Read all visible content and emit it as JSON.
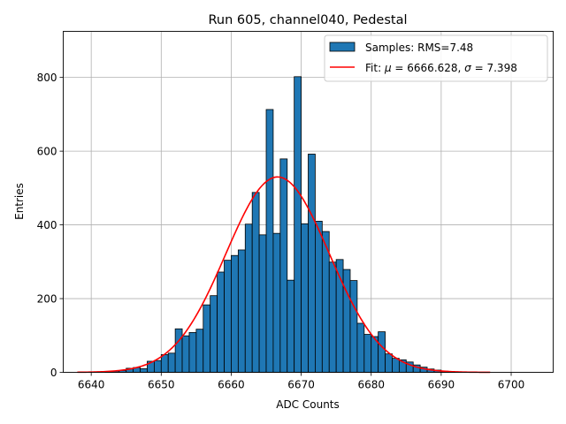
{
  "chart_data": {
    "type": "bar",
    "title": "Run 605, channel040, Pedestal",
    "xlabel": "ADC Counts",
    "ylabel": "Entries",
    "xlim": [
      6636,
      6706
    ],
    "ylim": [
      0,
      925
    ],
    "xticks": [
      6640,
      6650,
      6660,
      6670,
      6680,
      6690,
      6700
    ],
    "yticks": [
      0,
      200,
      400,
      600,
      800
    ],
    "grid": true,
    "legend_position": "top-right",
    "histogram": {
      "name": "Samples: RMS=7.48",
      "color": "#1f77b4",
      "bin_width": 1,
      "bin_starts": [
        6642,
        6643,
        6644,
        6645,
        6646,
        6647,
        6648,
        6649,
        6650,
        6651,
        6652,
        6653,
        6654,
        6655,
        6656,
        6657,
        6658,
        6659,
        6660,
        6661,
        6662,
        6663,
        6664,
        6665,
        6666,
        6667,
        6668,
        6669,
        6670,
        6671,
        6672,
        6673,
        6674,
        6675,
        6676,
        6677,
        6678,
        6679,
        6680,
        6681,
        6682,
        6683,
        6684,
        6685,
        6686,
        6687,
        6688,
        6689,
        6690,
        6691
      ],
      "counts": [
        1,
        3,
        5,
        11,
        13,
        10,
        30,
        32,
        48,
        52,
        118,
        99,
        108,
        117,
        183,
        208,
        272,
        304,
        317,
        332,
        402,
        488,
        373,
        713,
        377,
        579,
        250,
        802,
        403,
        592,
        410,
        382,
        299,
        306,
        279,
        249,
        133,
        103,
        97,
        110,
        50,
        38,
        34,
        28,
        20,
        14,
        9,
        6,
        3,
        1
      ]
    },
    "fit": {
      "name": "Fit: $\\mu$ = 6666.628, $\\sigma$ = 7.398",
      "label_prefix": "Fit: ",
      "mu_text": "μ",
      "mu_value": " = 6666.628, ",
      "sigma_text": "σ",
      "sigma_value": " = 7.398",
      "color": "#ff0000",
      "mu": 6666.628,
      "sigma": 7.398,
      "amplitude": 530,
      "x_range": [
        6638,
        6697
      ]
    }
  }
}
